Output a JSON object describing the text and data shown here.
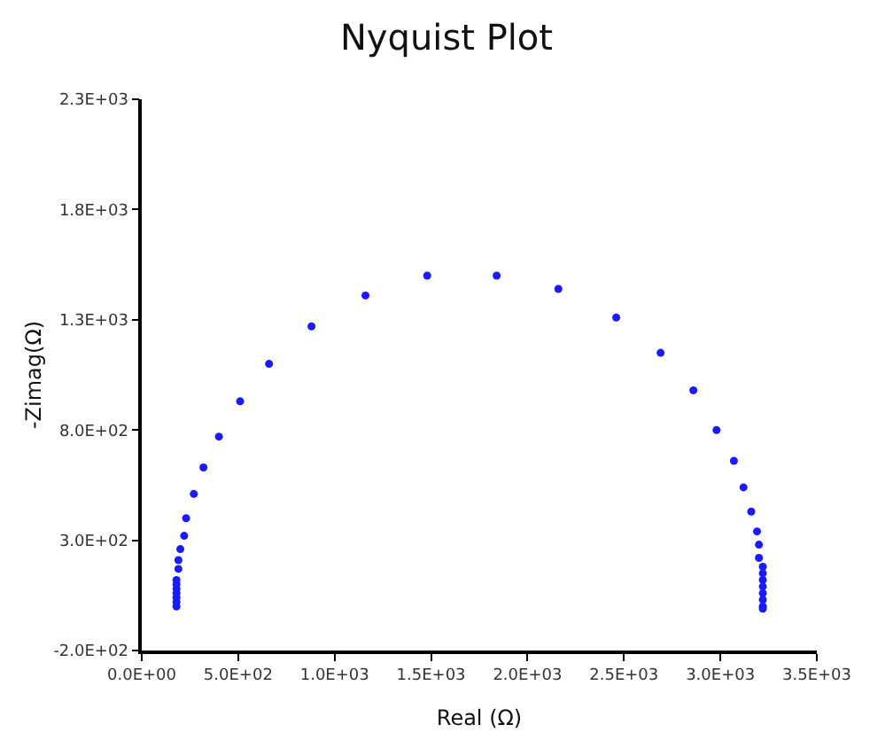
{
  "chart_data": {
    "type": "scatter",
    "title": "Nyquist Plot",
    "xlabel": "Real (Ω)",
    "ylabel": "-Zimag(Ω)",
    "x": [
      180,
      180,
      180,
      180,
      180,
      180,
      180,
      190,
      190,
      200,
      220,
      230,
      270,
      320,
      400,
      510,
      660,
      880,
      1160,
      1480,
      1840,
      2160,
      2460,
      2690,
      2860,
      2980,
      3070,
      3120,
      3160,
      3190,
      3200,
      3200,
      3220,
      3220,
      3220,
      3220,
      3220,
      3220,
      3220,
      3220
    ],
    "series": [
      {
        "color": "#1a1aff",
        "values": [
          0,
          20,
          40,
          60,
          80,
          100,
          120,
          170,
          210,
          260,
          320,
          400,
          510,
          630,
          770,
          930,
          1100,
          1270,
          1410,
          1500,
          1500,
          1440,
          1310,
          1150,
          980,
          800,
          660,
          540,
          430,
          340,
          280,
          220,
          180,
          150,
          120,
          90,
          60,
          30,
          0,
          -10
        ]
      }
    ],
    "xlim": [
      0,
      3500
    ],
    "ylim": [
      -200,
      2300
    ],
    "xticks": [
      {
        "value": 0,
        "label": "0.0E+00"
      },
      {
        "value": 500,
        "label": "5.0E+02"
      },
      {
        "value": 1000,
        "label": "1.0E+03"
      },
      {
        "value": 1500,
        "label": "1.5E+03"
      },
      {
        "value": 2000,
        "label": "2.0E+03"
      },
      {
        "value": 2500,
        "label": "2.5E+03"
      },
      {
        "value": 3000,
        "label": "3.0E+03"
      },
      {
        "value": 3500,
        "label": "3.5E+03"
      }
    ],
    "yticks": [
      {
        "value": -200,
        "label": "-2.0E+02"
      },
      {
        "value": 300,
        "label": "3.0E+02"
      },
      {
        "value": 800,
        "label": "8.0E+02"
      },
      {
        "value": 1300,
        "label": "1.3E+03"
      },
      {
        "value": 1800,
        "label": "1.8E+03"
      },
      {
        "value": 2300,
        "label": "2.3E+03"
      }
    ],
    "marker": "circle"
  }
}
